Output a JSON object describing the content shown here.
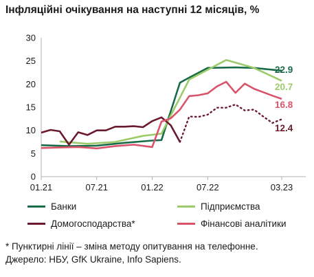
{
  "title": "Інфляційні очікування на наступні 12 місяців, %",
  "colors": {
    "banks": "#1a6b4a",
    "enterprises": "#9ccc6a",
    "households": "#6b1a2e",
    "analysts": "#d9546a",
    "axis": "#b0b0b0"
  },
  "chart_data": {
    "type": "line",
    "title": "Інфляційні очікування на наступні 12 місяців, %",
    "x_ticks": [
      "01.21",
      "07.21",
      "01.22",
      "07.22",
      "03.23"
    ],
    "ylim": [
      0,
      30
    ],
    "y_ticks": [
      "0",
      "5",
      "10",
      "15",
      "20",
      "25",
      "30"
    ],
    "grid": false,
    "legend_position": "bottom",
    "series": [
      {
        "key": "banks",
        "name": "Банки",
        "color": "#1a6b4a",
        "dotted_from": null,
        "points": [
          [
            "2021-01",
            6.8
          ],
          [
            "2021-04",
            6.6
          ],
          [
            "2021-07",
            6.7
          ],
          [
            "2021-10",
            7.3
          ],
          [
            "2022-01",
            7.8
          ],
          [
            "2022-02",
            7.9
          ],
          [
            "2022-04",
            20.3
          ],
          [
            "2022-05",
            21.4
          ],
          [
            "2022-07",
            23.5
          ],
          [
            "2022-10",
            23.6
          ],
          [
            "2022-12",
            23.5
          ],
          [
            "2023-03",
            22.9
          ]
        ],
        "end_label": "22.9"
      },
      {
        "key": "enterprises",
        "name": "Підприємства",
        "color": "#9ccc6a",
        "dotted_from": null,
        "points": [
          [
            "2021-03",
            7.6
          ],
          [
            "2021-06",
            7.1
          ],
          [
            "2021-09",
            7.5
          ],
          [
            "2021-12",
            8.8
          ],
          [
            "2022-02",
            9.3
          ],
          [
            "2022-05",
            21.0
          ],
          [
            "2022-09",
            25.2
          ],
          [
            "2022-12",
            23.5
          ],
          [
            "2023-03",
            20.7
          ]
        ],
        "end_label": "20.7"
      },
      {
        "key": "households",
        "name": "Домогосподарства*",
        "color": "#6b1a2e",
        "dotted_from": "2022-04",
        "points": [
          [
            "2021-01",
            9.5
          ],
          [
            "2021-02",
            10.1
          ],
          [
            "2021-03",
            9.8
          ],
          [
            "2021-04",
            6.9
          ],
          [
            "2021-05",
            9.6
          ],
          [
            "2021-06",
            9.0
          ],
          [
            "2021-07",
            10.0
          ],
          [
            "2021-08",
            10.0
          ],
          [
            "2021-09",
            10.8
          ],
          [
            "2021-10",
            10.8
          ],
          [
            "2021-11",
            10.9
          ],
          [
            "2021-12",
            10.7
          ],
          [
            "2022-01",
            12.0
          ],
          [
            "2022-02",
            12.8
          ],
          [
            "2022-03",
            11.1
          ],
          [
            "2022-04",
            7.5
          ],
          [
            "2022-05",
            13.0
          ],
          [
            "2022-06",
            12.9
          ],
          [
            "2022-07",
            13.4
          ],
          [
            "2022-08",
            14.9
          ],
          [
            "2022-09",
            14.9
          ],
          [
            "2022-10",
            15.6
          ],
          [
            "2022-11",
            14.3
          ],
          [
            "2022-12",
            14.5
          ],
          [
            "2023-01",
            13.0
          ],
          [
            "2023-02",
            11.6
          ],
          [
            "2023-03",
            12.4
          ]
        ],
        "end_label": "12.4"
      },
      {
        "key": "analysts",
        "name": "Фінансові аналітики",
        "color": "#d9546a",
        "dotted_from": null,
        "points": [
          [
            "2021-01",
            6.2
          ],
          [
            "2021-03",
            6.3
          ],
          [
            "2021-05",
            6.4
          ],
          [
            "2021-07",
            6.1
          ],
          [
            "2021-09",
            6.6
          ],
          [
            "2021-11",
            6.9
          ],
          [
            "2022-01",
            6.4
          ],
          [
            "2022-02",
            11.9
          ],
          [
            "2022-03",
            12.6
          ],
          [
            "2022-04",
            14.5
          ],
          [
            "2022-05",
            17.4
          ],
          [
            "2022-06",
            17.6
          ],
          [
            "2022-07",
            18.0
          ],
          [
            "2022-08",
            19.5
          ],
          [
            "2022-09",
            20.5
          ],
          [
            "2022-10",
            18.1
          ],
          [
            "2022-11",
            20.1
          ],
          [
            "2022-12",
            19.0
          ],
          [
            "2023-02",
            17.5
          ],
          [
            "2023-03",
            16.8
          ]
        ],
        "end_label": "16.8"
      }
    ]
  },
  "notes": {
    "line1": "* Пунктирні лінії – зміна методу опитування на телефонне.",
    "line2": "Джерело: НБУ, GfK Ukraine, Info Sapiens."
  }
}
